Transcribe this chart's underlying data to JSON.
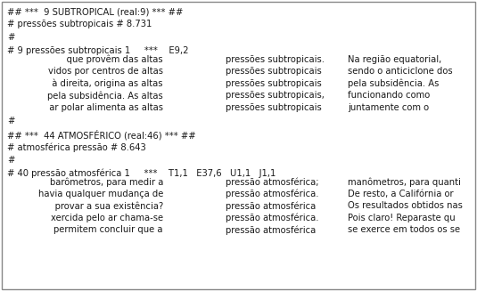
{
  "border_color": "#888888",
  "background_color": "#ffffff",
  "text_color": "#1a1a1a",
  "font_size": 7.2,
  "header1": "## ***  9 SUBTROPICAL (real:9) *** ##",
  "line1a": "# pressões subtropicais # 8.731",
  "line1b": "#",
  "line1c": "# 9 pressões subtropicais 1     ***    E9,2",
  "col1_lines_block1": [
    "     que provêm das altas",
    "vidos por centros de altas",
    "  à direita, origina as altas",
    "pela subsidência. As altas",
    "  ar polar alimenta as altas"
  ],
  "col2_lines_block1": [
    "pressões subtropicais.",
    "pressões subtropicais",
    "pressões subtropicais",
    "pressões subtropicais,",
    "pressões subtropicais"
  ],
  "col3_lines_block1": [
    "Na região equatorial,",
    "sendo o anticiclone dos",
    "pela subsidência. As",
    "funcionando como",
    "juntamente com o"
  ],
  "sep1": "#",
  "header2": "## ***  44 ATMOSFÉRICO (real:46) *** ##",
  "line2a": "# atmosférica pressão # 8.643",
  "line2b": "#",
  "line2c": "# 40 pressão atmosférica 1     ***    T1,1   E37,6   U1,1   J1,1",
  "col1_lines_block2": [
    "barômetros, para medir a",
    "havia qualquer mudança de",
    "     provar a sua existência?",
    "xercida pelo ar chama-se",
    "permitem concluir que a"
  ],
  "col2_lines_block2": [
    "pressão atmosférica;",
    "pressão atmosférica.",
    "pressão atmosférica",
    "pressão atmosférica.",
    "pressão atmosférica"
  ],
  "col3_lines_block2": [
    "manômetros, para quanti",
    "De resto, a Califórnia or",
    "Os resultados obtidos nas",
    "Pois claro! Reparaste qu",
    "se exerce em todos os se"
  ]
}
